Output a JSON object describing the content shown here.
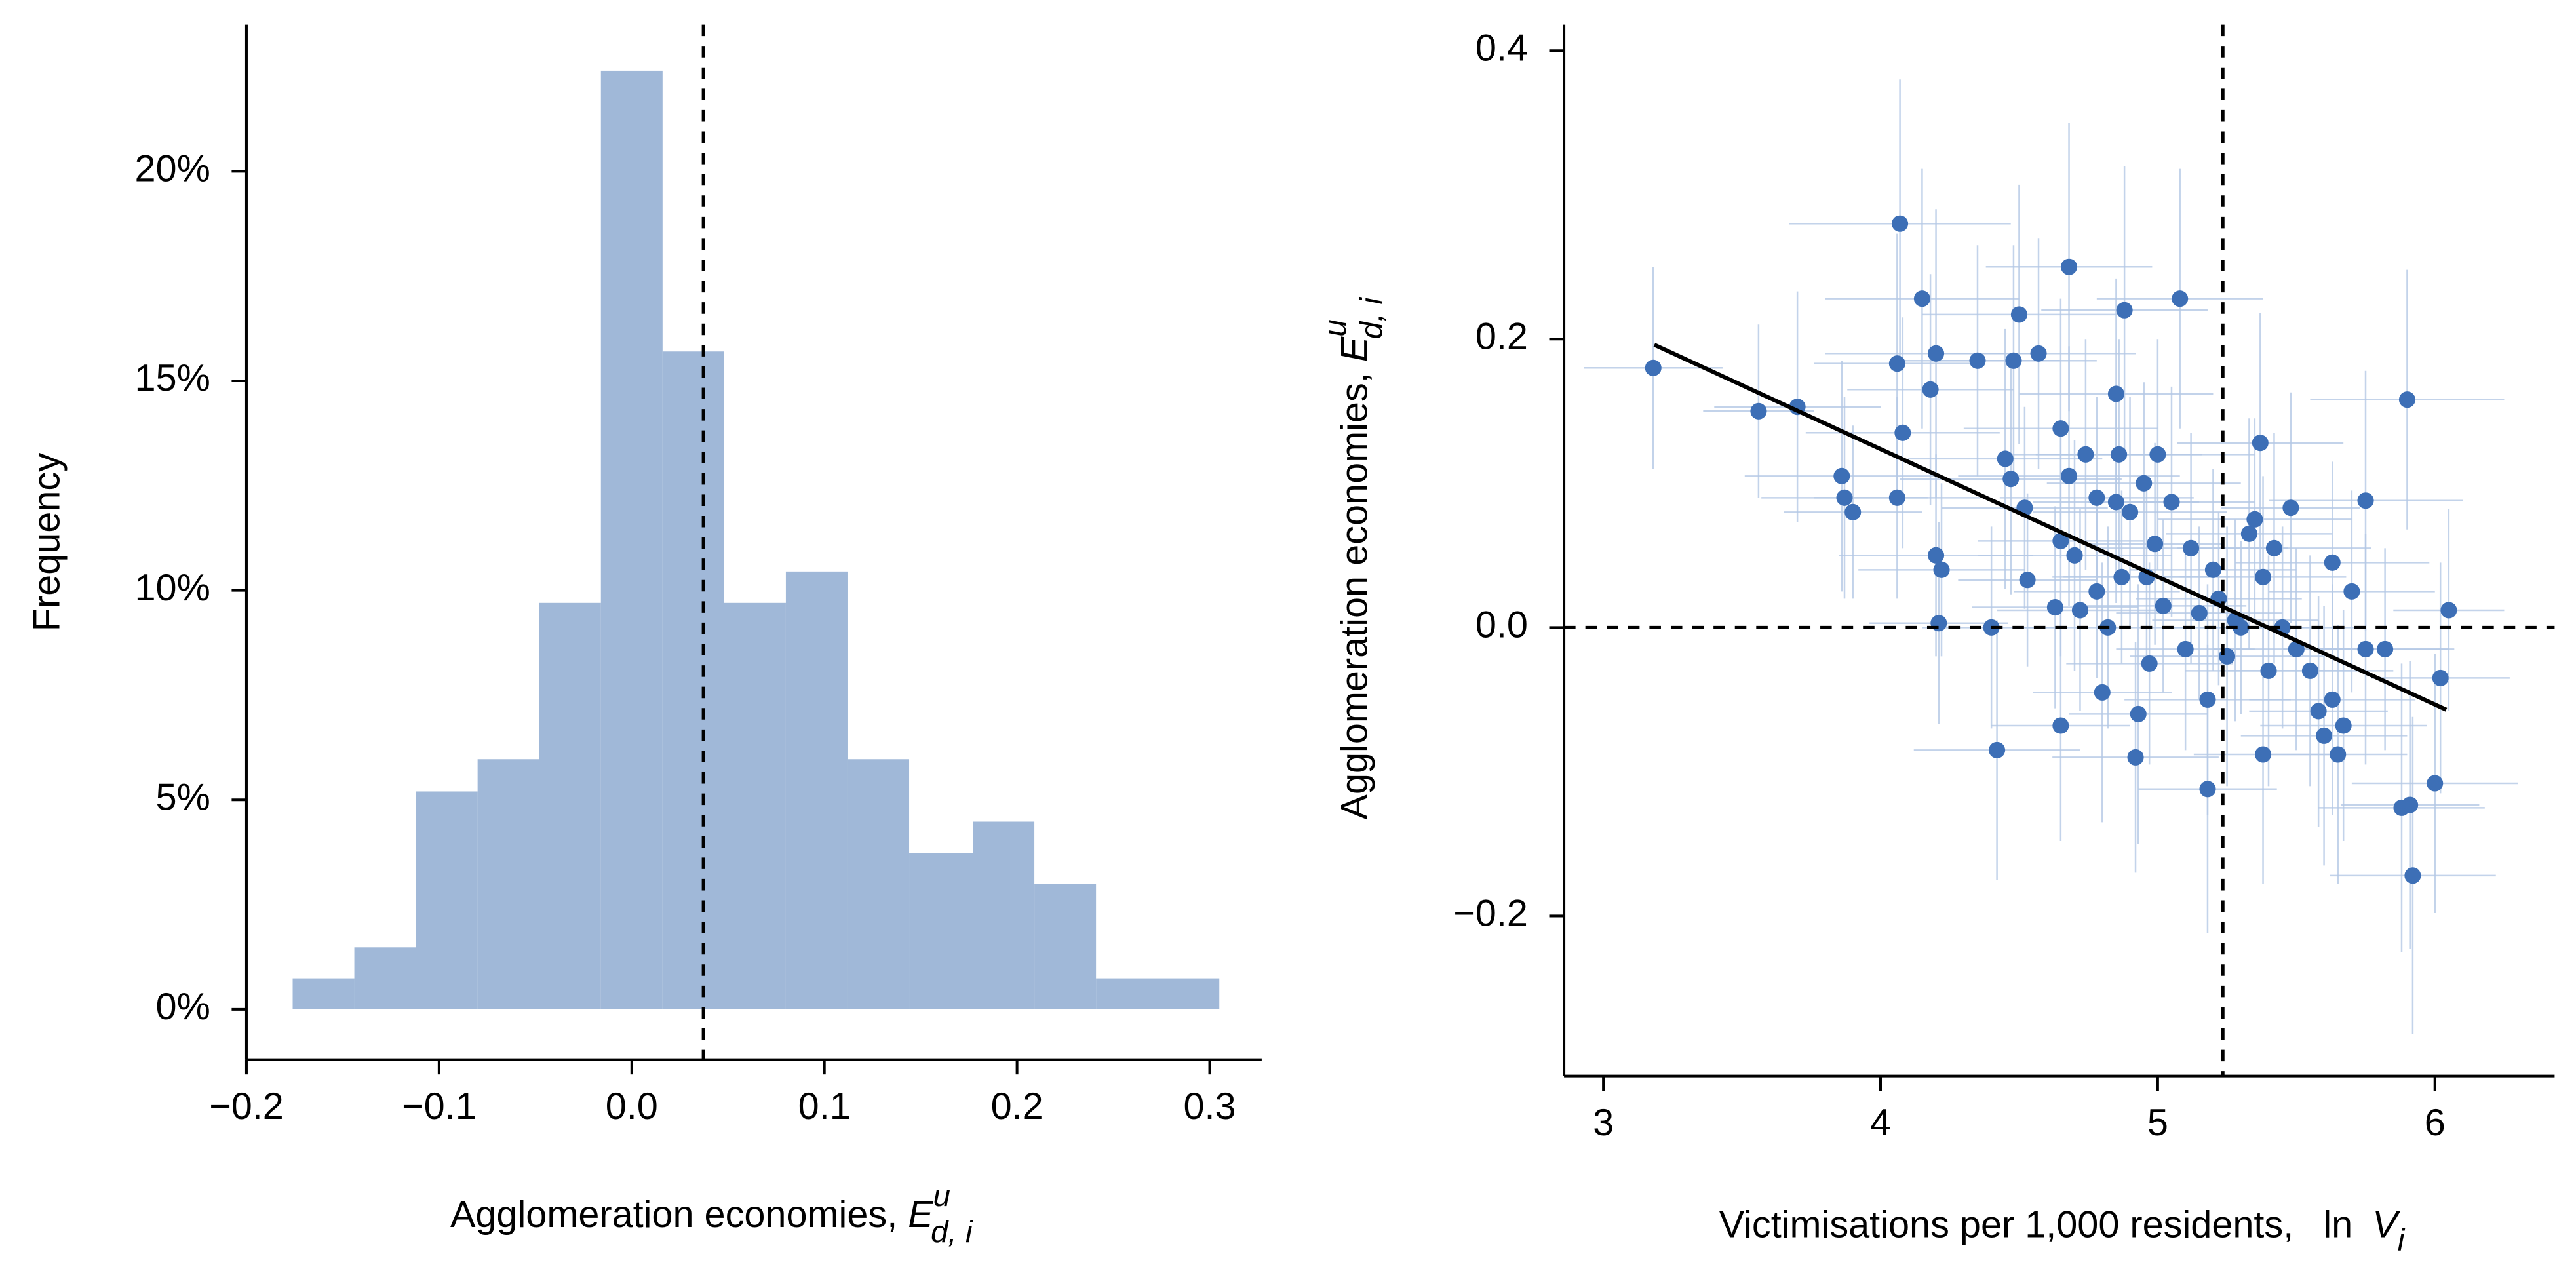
{
  "chart_data": [
    {
      "type": "histogram",
      "xlabel": {
        "text": "Agglomeration economies, ",
        "symbol": "E",
        "sup": "u",
        "sub": "d, i"
      },
      "ylabel": "Frequency",
      "bins": [
        -0.176,
        -0.144,
        -0.112,
        -0.08,
        -0.048,
        -0.016,
        0.016,
        0.048,
        0.08,
        0.112,
        0.144,
        0.177,
        0.209,
        0.241,
        0.273,
        0.305
      ],
      "values": [
        0.74,
        1.48,
        5.2,
        5.97,
        9.7,
        22.4,
        15.7,
        9.7,
        10.45,
        5.97,
        3.73,
        4.48,
        3.0,
        0.74,
        0.74
      ],
      "color": "#a0b8d8",
      "xlim": [
        -0.2,
        0.327
      ],
      "ylim": [
        -1.2,
        23.5
      ],
      "xticks": [
        {
          "value": -0.2,
          "label": "−0.2"
        },
        {
          "value": -0.1,
          "label": "−0.1"
        },
        {
          "value": 0,
          "label": "0.0"
        },
        0.1,
        0.2,
        0.3
      ],
      "yticks": [
        {
          "value": 0,
          "label": "0%"
        },
        {
          "value": 5,
          "label": "5%"
        },
        {
          "value": 10,
          "label": "10%"
        },
        {
          "value": 15,
          "label": "15%"
        },
        {
          "value": 20,
          "label": "20%"
        }
      ],
      "vline": 0.0372
    },
    {
      "type": "scatter",
      "xlabel": {
        "text": "Victimisations per 1,000 residents,",
        "ln": "ln",
        "symbol": "V",
        "sub": "i"
      },
      "ylabel": {
        "text": "Agglomeration economies, ",
        "symbol": "E",
        "sup": "u",
        "sub": "d, i"
      },
      "color": "#3d6fb6",
      "errcolor": "#b5c9e6",
      "x": [
        3.18,
        3.56,
        3.7,
        3.86,
        3.87,
        3.9,
        4.07,
        4.06,
        4.08,
        4.06,
        4.15,
        4.18,
        4.2,
        4.2,
        4.22,
        4.21,
        4.35,
        4.4,
        4.42,
        4.45,
        4.47,
        4.48,
        4.5,
        4.52,
        4.53,
        4.57,
        4.63,
        4.65,
        4.65,
        4.65,
        4.68,
        4.68,
        4.7,
        4.72,
        4.74,
        4.78,
        4.78,
        4.8,
        4.82,
        4.85,
        4.85,
        4.86,
        4.87,
        4.88,
        4.9,
        4.92,
        4.93,
        4.95,
        4.96,
        4.97,
        4.99,
        5.0,
        5.02,
        5.05,
        5.08,
        5.1,
        5.12,
        5.15,
        5.18,
        5.18,
        5.2,
        5.22,
        5.25,
        5.28,
        5.3,
        5.33,
        5.35,
        5.37,
        5.38,
        5.38,
        5.4,
        5.42,
        5.45,
        5.48,
        5.5,
        5.55,
        5.58,
        5.6,
        5.63,
        5.63,
        5.65,
        5.67,
        5.7,
        5.75,
        5.75,
        5.82,
        5.88,
        5.9,
        5.91,
        5.92,
        6.0,
        6.02,
        6.05
      ],
      "y": [
        0.18,
        0.15,
        0.153,
        0.105,
        0.09,
        0.08,
        0.28,
        0.183,
        0.135,
        0.09,
        0.228,
        0.165,
        0.19,
        0.05,
        0.04,
        0.003,
        0.185,
        0.0,
        -0.085,
        0.117,
        0.103,
        0.185,
        0.217,
        0.083,
        0.033,
        0.19,
        0.014,
        0.138,
        0.06,
        -0.068,
        0.25,
        0.105,
        0.05,
        0.012,
        0.12,
        0.09,
        0.025,
        -0.045,
        0.0,
        0.162,
        0.087,
        0.12,
        0.035,
        0.22,
        0.08,
        -0.09,
        -0.06,
        0.1,
        0.035,
        -0.025,
        0.058,
        0.12,
        0.015,
        0.087,
        0.228,
        -0.015,
        0.055,
        0.01,
        -0.05,
        -0.112,
        0.04,
        0.02,
        -0.02,
        0.005,
        0.0,
        0.065,
        0.075,
        0.128,
        0.035,
        -0.088,
        -0.03,
        0.055,
        0.0,
        0.083,
        -0.015,
        -0.03,
        -0.058,
        -0.075,
        0.045,
        -0.05,
        -0.088,
        -0.068,
        0.025,
        0.088,
        -0.015,
        -0.015,
        -0.125,
        0.158,
        -0.123,
        -0.172,
        -0.108,
        -0.035,
        0.012
      ],
      "xerr": [
        0.25,
        0.2,
        0.3,
        0.35,
        0.3,
        0.25,
        0.4,
        0.3,
        0.35,
        0.3,
        0.35,
        0.3,
        0.4,
        0.35,
        0.3,
        0.25,
        0.3,
        0.25,
        0.3,
        0.35,
        0.4,
        0.3,
        0.35,
        0.3,
        0.25,
        0.35,
        0.3,
        0.35,
        0.3,
        0.25,
        0.3,
        0.4,
        0.35,
        0.3,
        0.3,
        0.35,
        0.3,
        0.25,
        0.3,
        0.35,
        0.3,
        0.3,
        0.25,
        0.3,
        0.35,
        0.3,
        0.25,
        0.35,
        0.3,
        0.3,
        0.25,
        0.35,
        0.3,
        0.3,
        0.3,
        0.25,
        0.35,
        0.3,
        0.3,
        0.25,
        0.3,
        0.3,
        0.35,
        0.3,
        0.25,
        0.3,
        0.35,
        0.3,
        0.3,
        0.25,
        0.3,
        0.35,
        0.3,
        0.25,
        0.3,
        0.3,
        0.25,
        0.3,
        0.35,
        0.3,
        0.25,
        0.3,
        0.3,
        0.35,
        0.3,
        0.25,
        0.3,
        0.35,
        0.25,
        0.3,
        0.3,
        0.25,
        0.2
      ],
      "yerr": [
        0.07,
        0.06,
        0.08,
        0.08,
        0.07,
        0.06,
        0.1,
        0.09,
        0.08,
        0.07,
        0.09,
        0.08,
        0.1,
        0.07,
        0.06,
        0.07,
        0.08,
        0.07,
        0.09,
        0.09,
        0.08,
        0.08,
        0.09,
        0.07,
        0.06,
        0.08,
        0.07,
        0.09,
        0.08,
        0.08,
        0.1,
        0.09,
        0.08,
        0.07,
        0.08,
        0.07,
        0.06,
        0.09,
        0.07,
        0.08,
        0.07,
        0.08,
        0.06,
        0.1,
        0.08,
        0.08,
        0.09,
        0.07,
        0.06,
        0.07,
        0.07,
        0.08,
        0.06,
        0.08,
        0.09,
        0.07,
        0.08,
        0.06,
        0.08,
        0.1,
        0.07,
        0.06,
        0.09,
        0.07,
        0.06,
        0.08,
        0.07,
        0.09,
        0.07,
        0.09,
        0.08,
        0.08,
        0.07,
        0.08,
        0.07,
        0.08,
        0.08,
        0.09,
        0.07,
        0.08,
        0.09,
        0.08,
        0.07,
        0.09,
        0.08,
        0.07,
        0.1,
        0.09,
        0.1,
        0.11,
        0.09,
        0.08,
        0.07
      ],
      "fit": {
        "x": [
          3.184,
          6.041
        ],
        "y": [
          0.196,
          -0.057
        ]
      },
      "xlim": [
        2.858,
        6.432
      ],
      "ylim": [
        -0.311,
        0.418
      ],
      "xticks": [
        3,
        4,
        5,
        6
      ],
      "yticks": [
        {
          "value": -0.2,
          "label": "−0.2"
        },
        {
          "value": 0,
          "label": "0.0"
        },
        0.2,
        0.4
      ],
      "vline": 5.235,
      "hline": 0
    }
  ]
}
